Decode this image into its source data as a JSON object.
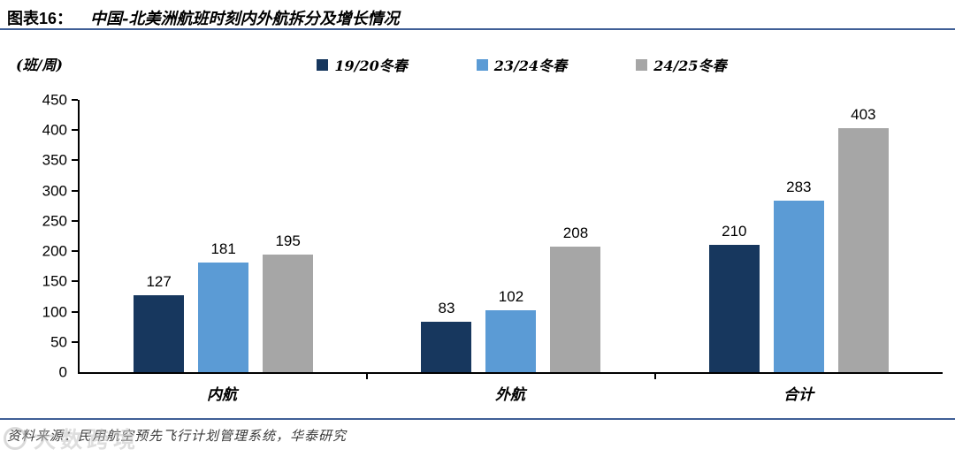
{
  "header": {
    "chart_label": "图表16：",
    "title": "中国-北美洲航班时刻内外航拆分及增长情况"
  },
  "footer": {
    "source": "资料来源：民用航空预先飞行计划管理系统，华泰研究",
    "watermark": "大数跨境"
  },
  "chart_data": {
    "type": "bar",
    "title": "图表16： 中国-北美洲航班时刻内外航拆分及增长情况",
    "unit_label": "(班/周)",
    "categories": [
      "内航",
      "外航",
      "合计"
    ],
    "series": [
      {
        "name": "19/20冬春",
        "color": "#17375E",
        "values": [
          127,
          83,
          210
        ]
      },
      {
        "name": "23/24冬春",
        "color": "#5B9BD5",
        "values": [
          181,
          102,
          283
        ]
      },
      {
        "name": "24/25冬春",
        "color": "#A6A6A6",
        "values": [
          195,
          208,
          403
        ]
      }
    ],
    "xlabel": "",
    "ylabel": "(班/周)",
    "ylim": [
      0,
      450
    ],
    "yticks": [
      0,
      50,
      100,
      150,
      200,
      250,
      300,
      350,
      400,
      450
    ],
    "grid": false,
    "legend_position": "top-center",
    "value_labels": true,
    "axis_color": "#000000",
    "rule_color": "#3f5f96"
  }
}
